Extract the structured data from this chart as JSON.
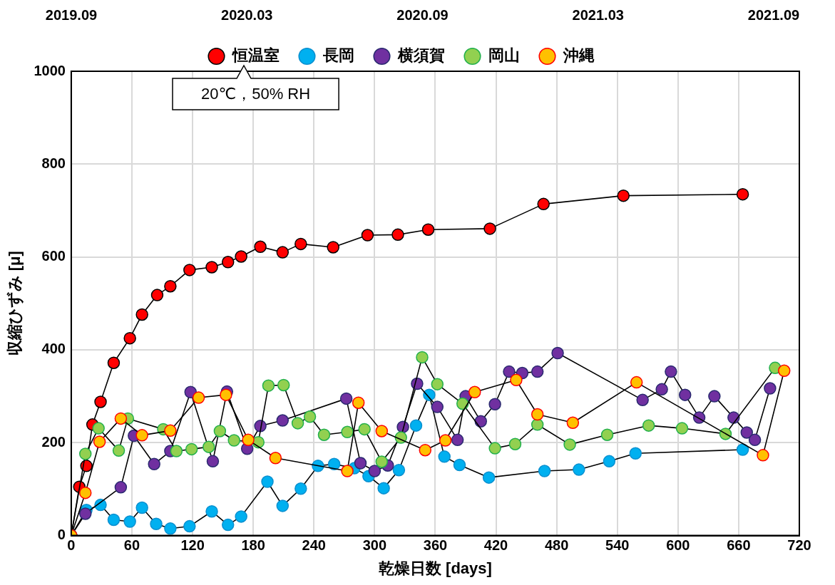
{
  "chart_data": {
    "type": "line",
    "xlabel": "乾燥日数 [days]",
    "ylabel": "収縮ひずみ [μ]",
    "xlim": [
      0,
      720
    ],
    "xticks": [
      0,
      60,
      120,
      180,
      240,
      300,
      360,
      420,
      480,
      540,
      600,
      660,
      720
    ],
    "ylim": [
      0,
      1000
    ],
    "yticks": [
      0,
      200,
      400,
      600,
      800,
      1000
    ],
    "grid": true,
    "legend": "top",
    "marker": "circle",
    "line_style": "solid",
    "annotations": [
      "2019.09",
      "2020.03",
      "2020.09",
      "2021.03",
      "2021.09",
      "20℃，50% RH"
    ],
    "series": [
      {
        "name": "恒温室",
        "color": "#ff0000",
        "x": [
          0,
          8,
          15,
          21,
          29,
          42,
          58,
          70,
          85,
          98,
          117,
          139,
          155,
          168,
          187,
          209,
          227,
          259,
          293,
          323,
          353,
          414,
          467,
          546,
          664
        ],
        "values": [
          0,
          105,
          150,
          239,
          288,
          372,
          425,
          476,
          518,
          537,
          572,
          578,
          589,
          601,
          622,
          610,
          628,
          621,
          647,
          648,
          659,
          661,
          714,
          732,
          735
        ]
      },
      {
        "name": "長岡",
        "color": "#00b0f0",
        "x": [
          0,
          15,
          29,
          42,
          58,
          70,
          84,
          98,
          117,
          139,
          155,
          168,
          194,
          209,
          227,
          244,
          260,
          280,
          294,
          309,
          324,
          341,
          354,
          369,
          384,
          413,
          468,
          502,
          532,
          558,
          664
        ],
        "values": [
          0,
          55,
          66,
          34,
          30,
          60,
          25,
          15,
          20,
          52,
          23,
          41,
          116,
          64,
          101,
          150,
          154,
          145,
          128,
          102,
          141,
          237,
          303,
          170,
          152,
          125,
          139,
          142,
          160,
          177,
          185
        ]
      },
      {
        "name": "横須賀",
        "color": "#7030a0",
        "x": [
          0,
          14,
          49,
          62,
          82,
          98,
          118,
          140,
          154,
          174,
          187,
          209,
          272,
          286,
          300,
          313,
          328,
          342,
          362,
          382,
          390,
          405,
          419,
          433,
          446,
          461,
          481,
          565,
          584,
          593,
          607,
          621,
          636,
          655,
          668,
          676,
          691
        ],
        "values": [
          0,
          47,
          104,
          215,
          154,
          182,
          309,
          160,
          310,
          187,
          236,
          248,
          295,
          156,
          139,
          151,
          234,
          327,
          277,
          206,
          300,
          246,
          283,
          353,
          350,
          353,
          393,
          292,
          315,
          353,
          303,
          254,
          300,
          254,
          222,
          206,
          317
        ]
      },
      {
        "name": "岡山",
        "color": "#92d050",
        "x": [
          0,
          14,
          27,
          47,
          56,
          91,
          104,
          119,
          136,
          147,
          161,
          185,
          195,
          210,
          224,
          236,
          250,
          273,
          290,
          307,
          326,
          347,
          362,
          387,
          419,
          439,
          461,
          493,
          530,
          571,
          604,
          647,
          696
        ],
        "values": [
          0,
          176,
          231,
          183,
          252,
          229,
          182,
          186,
          191,
          225,
          205,
          201,
          323,
          324,
          242,
          256,
          217,
          223,
          229,
          159,
          211,
          384,
          326,
          284,
          188,
          197,
          239,
          196,
          217,
          237,
          231,
          219,
          361
        ]
      },
      {
        "name": "沖縄",
        "color": "#ffc000",
        "x": [
          0,
          14,
          28,
          49,
          70,
          98,
          126,
          153,
          175,
          202,
          273,
          284,
          307,
          350,
          370,
          399,
          440,
          461,
          496,
          559,
          684,
          705
        ],
        "values": [
          0,
          92,
          202,
          252,
          216,
          226,
          297,
          303,
          206,
          167,
          139,
          286,
          225,
          184,
          205,
          309,
          335,
          261,
          243,
          330,
          173,
          355
        ]
      }
    ]
  }
}
